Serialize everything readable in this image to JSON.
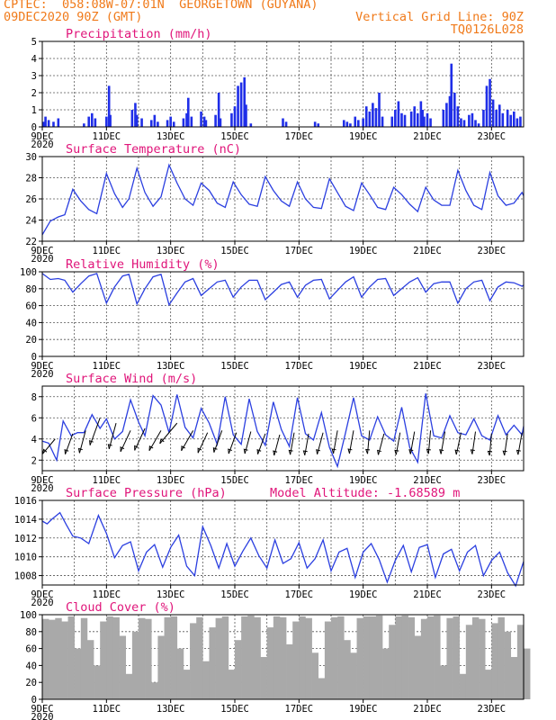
{
  "header": {
    "line1_left": "CPTEC:  058:08W-07:01N  GEORGETOWN (GUYANA)",
    "line2_left": "09DEC2020 90Z (GMT)",
    "line2_right": "Vertical Grid Line: 90Z",
    "line3_right": "TQ0126L028"
  },
  "colors": {
    "header": "#f07a1a",
    "title": "#e0157a",
    "series": "#2b3fe0",
    "precip_bars": "#1f2ee8",
    "cloud": "#a9a9a9"
  },
  "chart_data": [
    {
      "id": "precip",
      "type": "bar",
      "title": "Precipitation (mm/h)",
      "ylim": [
        0,
        5
      ],
      "yticks": [
        0,
        1,
        2,
        3,
        4,
        5
      ],
      "xticks": [
        "9DEC",
        "11DEC",
        "13DEC",
        "15DEC",
        "17DEC",
        "19DEC",
        "21DEC",
        "23DEC"
      ],
      "x_start_label": "2020",
      "x": [
        0.05,
        0.1,
        0.2,
        0.35,
        0.5,
        1.3,
        1.45,
        1.55,
        1.65,
        2.0,
        2.08,
        2.12,
        2.8,
        2.9,
        2.95,
        3.1,
        3.4,
        3.5,
        3.6,
        3.9,
        4.0,
        4.1,
        4.4,
        4.5,
        4.55,
        4.65,
        4.95,
        5.05,
        5.1,
        5.4,
        5.5,
        5.55,
        5.9,
        6.0,
        6.1,
        6.2,
        6.3,
        6.35,
        6.5,
        7.5,
        7.6,
        8.5,
        8.6,
        9.4,
        9.5,
        9.6,
        9.75,
        9.85,
        10.0,
        10.1,
        10.2,
        10.3,
        10.4,
        10.5,
        10.6,
        10.9,
        11.0,
        11.1,
        11.2,
        11.3,
        11.5,
        11.6,
        11.7,
        11.8,
        11.85,
        11.9,
        12.0,
        12.1,
        12.5,
        12.6,
        12.7,
        12.75,
        12.85,
        12.95,
        13.05,
        13.15,
        13.3,
        13.4,
        13.5,
        13.6,
        13.75,
        13.85,
        13.95,
        14.05,
        14.15,
        14.25,
        14.35,
        14.5,
        14.6,
        14.7,
        14.8,
        14.9
      ],
      "values": [
        0.3,
        0.6,
        0.4,
        0.3,
        0.5,
        0.2,
        0.6,
        0.8,
        0.5,
        0.6,
        2.4,
        0.7,
        1.0,
        1.4,
        0.7,
        0.5,
        0.4,
        0.7,
        0.3,
        0.4,
        0.6,
        0.3,
        0.5,
        0.8,
        1.7,
        0.6,
        0.9,
        0.6,
        0.4,
        0.7,
        2.0,
        0.5,
        0.8,
        1.2,
        2.4,
        2.6,
        2.9,
        1.3,
        0.2,
        0.5,
        0.3,
        0.3,
        0.2,
        0.4,
        0.3,
        0.2,
        0.6,
        0.4,
        0.5,
        1.2,
        0.9,
        1.4,
        1.1,
        2.0,
        0.6,
        0.6,
        1.0,
        1.5,
        0.8,
        0.7,
        0.9,
        1.2,
        0.8,
        1.5,
        1.0,
        0.6,
        0.8,
        0.5,
        1.0,
        1.4,
        1.8,
        3.7,
        2.0,
        1.2,
        0.5,
        0.4,
        0.7,
        0.8,
        0.4,
        0.2,
        1.0,
        2.4,
        2.8,
        1.6,
        1.0,
        1.3,
        0.8,
        1.0,
        0.7,
        0.9,
        0.5,
        0.6
      ]
    },
    {
      "id": "temp",
      "type": "line",
      "title": "Surface Temperature (nC)",
      "ylim": [
        22,
        30
      ],
      "yticks": [
        22,
        24,
        26,
        28,
        30
      ],
      "xticks": [
        "9DEC",
        "11DEC",
        "13DEC",
        "15DEC",
        "17DEC",
        "19DEC",
        "21DEC",
        "23DEC"
      ],
      "x_start_label": "2020",
      "x": [
        0.0,
        0.25,
        0.5,
        0.7,
        0.95,
        1.2,
        1.45,
        1.7,
        2.0,
        2.25,
        2.5,
        2.7,
        2.95,
        3.2,
        3.45,
        3.7,
        3.95,
        4.2,
        4.45,
        4.7,
        4.95,
        5.2,
        5.45,
        5.7,
        5.95,
        6.2,
        6.45,
        6.7,
        6.95,
        7.2,
        7.45,
        7.7,
        7.95,
        8.2,
        8.45,
        8.7,
        8.95,
        9.2,
        9.45,
        9.7,
        9.95,
        10.2,
        10.45,
        10.7,
        10.95,
        11.2,
        11.45,
        11.7,
        11.95,
        12.2,
        12.45,
        12.7,
        12.95,
        13.2,
        13.45,
        13.7,
        13.95,
        14.2,
        14.45,
        14.7,
        14.95,
        15.0
      ],
      "values": [
        22.6,
        23.9,
        24.3,
        24.5,
        26.9,
        25.8,
        25.0,
        24.6,
        28.4,
        26.5,
        25.2,
        26.0,
        28.9,
        26.6,
        25.3,
        26.2,
        29.2,
        27.5,
        26.0,
        25.4,
        27.5,
        26.8,
        25.6,
        25.2,
        27.6,
        26.4,
        25.5,
        25.3,
        28.1,
        26.8,
        25.8,
        25.3,
        27.6,
        26.0,
        25.2,
        25.1,
        27.9,
        26.6,
        25.3,
        24.9,
        27.5,
        26.4,
        25.2,
        25.0,
        27.1,
        26.4,
        25.5,
        24.8,
        27.1,
        25.9,
        25.4,
        25.4,
        28.7,
        26.8,
        25.4,
        25.0,
        28.5,
        26.3,
        25.4,
        25.6,
        26.6,
        26.3
      ]
    },
    {
      "id": "rh",
      "type": "line",
      "title": "Relative Humidity (%)",
      "ylim": [
        0,
        100
      ],
      "yticks": [
        0,
        20,
        40,
        60,
        80,
        100
      ],
      "xticks": [
        "9DEC",
        "11DEC",
        "13DEC",
        "15DEC",
        "17DEC",
        "19DEC",
        "21DEC",
        "23DEC"
      ],
      "x_start_label": "2020",
      "x": [
        0.0,
        0.25,
        0.5,
        0.7,
        0.95,
        1.2,
        1.45,
        1.7,
        2.0,
        2.25,
        2.5,
        2.7,
        2.95,
        3.2,
        3.45,
        3.7,
        3.95,
        4.2,
        4.45,
        4.7,
        4.95,
        5.2,
        5.45,
        5.7,
        5.95,
        6.2,
        6.45,
        6.7,
        6.95,
        7.2,
        7.45,
        7.7,
        7.95,
        8.2,
        8.45,
        8.7,
        8.95,
        9.2,
        9.45,
        9.7,
        9.95,
        10.2,
        10.45,
        10.7,
        10.95,
        11.2,
        11.45,
        11.7,
        11.95,
        12.2,
        12.45,
        12.7,
        12.95,
        13.2,
        13.45,
        13.7,
        13.95,
        14.2,
        14.45,
        14.7,
        14.95,
        15.0
      ],
      "values": [
        98,
        91,
        92,
        90,
        76,
        86,
        95,
        98,
        63,
        82,
        95,
        97,
        62,
        80,
        94,
        97,
        61,
        75,
        88,
        92,
        72,
        80,
        88,
        90,
        70,
        82,
        90,
        90,
        67,
        76,
        85,
        88,
        70,
        84,
        90,
        91,
        68,
        78,
        88,
        94,
        70,
        82,
        91,
        92,
        72,
        80,
        88,
        93,
        76,
        86,
        88,
        88,
        63,
        80,
        88,
        90,
        66,
        82,
        88,
        87,
        83,
        84
      ]
    },
    {
      "id": "wind",
      "type": "line",
      "title": "Surface Wind (m/s)",
      "ylim": [
        1,
        9
      ],
      "yticks": [
        2,
        4,
        6,
        8
      ],
      "xticks": [
        "9DEC",
        "11DEC",
        "13DEC",
        "15DEC",
        "17DEC",
        "19DEC",
        "21DEC",
        "23DEC"
      ],
      "x_start_label": "2020",
      "x": [
        0.0,
        0.2,
        0.45,
        0.65,
        0.9,
        1.1,
        1.3,
        1.55,
        1.8,
        2.0,
        2.25,
        2.5,
        2.75,
        3.0,
        3.2,
        3.45,
        3.7,
        3.95,
        4.2,
        4.45,
        4.7,
        4.95,
        5.2,
        5.45,
        5.7,
        5.95,
        6.2,
        6.45,
        6.7,
        6.95,
        7.2,
        7.45,
        7.7,
        7.95,
        8.2,
        8.45,
        8.7,
        8.95,
        9.2,
        9.45,
        9.7,
        9.95,
        10.2,
        10.45,
        10.7,
        10.95,
        11.2,
        11.45,
        11.7,
        11.95,
        12.2,
        12.45,
        12.7,
        12.95,
        13.2,
        13.45,
        13.7,
        13.95,
        14.2,
        14.45,
        14.7,
        14.95,
        15.0
      ],
      "values": [
        3.8,
        3.6,
        2.0,
        5.7,
        4.3,
        4.6,
        4.6,
        6.3,
        5.0,
        5.9,
        4.0,
        4.7,
        7.7,
        5.6,
        4.3,
        8.1,
        7.2,
        4.6,
        8.2,
        5.1,
        4.1,
        6.9,
        5.5,
        3.5,
        8.0,
        4.4,
        3.5,
        7.8,
        4.7,
        3.4,
        7.5,
        4.9,
        3.3,
        7.9,
        4.5,
        3.9,
        6.5,
        3.2,
        1.4,
        4.6,
        7.9,
        4.3,
        3.9,
        6.1,
        4.4,
        3.8,
        7.0,
        3.2,
        1.8,
        8.3,
        4.3,
        4.1,
        6.2,
        4.6,
        4.4,
        5.9,
        4.3,
        3.9,
        6.2,
        4.4,
        5.3,
        4.4,
        5.2
      ],
      "vector_x": [
        0.4,
        0.95,
        1.35,
        1.8,
        2.3,
        2.75,
        3.2,
        3.7,
        4.2,
        4.7,
        5.15,
        5.6,
        6.05,
        6.5,
        6.95,
        7.4,
        7.85,
        8.3,
        8.75,
        9.2,
        9.7,
        10.2,
        10.65,
        11.15,
        11.6,
        12.1,
        12.55,
        13.05,
        13.5,
        14.0,
        14.5,
        14.95
      ],
      "vector_speed": [
        4.0,
        4.5,
        4.8,
        6.0,
        5.5,
        4.8,
        5.0,
        4.8,
        5.5,
        4.8,
        4.6,
        4.8,
        4.6,
        4.7,
        4.5,
        4.4,
        4.6,
        4.5,
        4.6,
        4.8,
        4.8,
        4.8,
        4.5,
        4.6,
        4.7,
        4.8,
        4.7,
        4.6,
        4.7,
        4.5,
        4.5,
        4.6
      ],
      "vector_dir_deg": [
        230,
        250,
        255,
        250,
        255,
        245,
        245,
        240,
        230,
        240,
        245,
        250,
        250,
        255,
        250,
        255,
        260,
        260,
        255,
        260,
        260,
        265,
        255,
        260,
        260,
        265,
        260,
        258,
        262,
        265,
        262,
        260
      ]
    },
    {
      "id": "pressure",
      "type": "line",
      "title": "Surface Pressure (hPa)",
      "annotation": "Model Altitude: -1.68589 m",
      "ylim": [
        1007,
        1016
      ],
      "yticks": [
        1008,
        1010,
        1012,
        1014,
        1016
      ],
      "xticks": [
        "9DEC",
        "11DEC",
        "13DEC",
        "15DEC",
        "17DEC",
        "19DEC",
        "21DEC",
        "23DEC"
      ],
      "x_start_label": "2020",
      "x": [
        0.0,
        0.15,
        0.3,
        0.55,
        0.75,
        0.95,
        1.2,
        1.45,
        1.75,
        2.0,
        2.25,
        2.5,
        2.75,
        3.0,
        3.25,
        3.5,
        3.75,
        4.0,
        4.25,
        4.5,
        4.75,
        5.0,
        5.25,
        5.5,
        5.75,
        6.0,
        6.25,
        6.5,
        6.75,
        7.0,
        7.25,
        7.5,
        7.75,
        8.0,
        8.25,
        8.5,
        8.75,
        9.0,
        9.25,
        9.5,
        9.75,
        10.0,
        10.25,
        10.5,
        10.75,
        11.0,
        11.25,
        11.5,
        11.75,
        12.0,
        12.25,
        12.5,
        12.75,
        13.0,
        13.25,
        13.5,
        13.75,
        14.0,
        14.25,
        14.5,
        14.75,
        15.0
      ],
      "values": [
        1013.8,
        1013.5,
        1014.0,
        1014.7,
        1013.4,
        1012.2,
        1012.0,
        1011.4,
        1014.4,
        1012.5,
        1009.9,
        1011.2,
        1011.6,
        1008.5,
        1010.5,
        1011.3,
        1008.9,
        1011.0,
        1012.3,
        1009.0,
        1008.0,
        1013.2,
        1011.2,
        1008.8,
        1011.4,
        1009.0,
        1010.6,
        1012.0,
        1010.1,
        1008.8,
        1011.8,
        1009.3,
        1009.8,
        1011.5,
        1008.8,
        1009.8,
        1011.8,
        1008.5,
        1010.5,
        1010.9,
        1007.8,
        1010.5,
        1011.4,
        1009.7,
        1007.3,
        1009.6,
        1011.2,
        1008.4,
        1011.0,
        1011.3,
        1007.8,
        1010.3,
        1010.8,
        1008.5,
        1010.5,
        1011.2,
        1008.0,
        1009.6,
        1010.5,
        1008.3,
        1006.9,
        1009.5
      ]
    },
    {
      "id": "cloud",
      "type": "area",
      "title": "Cloud Cover (%)",
      "ylim": [
        0,
        100
      ],
      "yticks": [
        0,
        20,
        40,
        60,
        80,
        100
      ],
      "xticks": [
        "9DEC",
        "11DEC",
        "13DEC",
        "15DEC",
        "17DEC",
        "19DEC",
        "21DEC",
        "23DEC"
      ],
      "x_start_label": "2020",
      "x": [
        0.0,
        0.2,
        0.4,
        0.6,
        0.8,
        1.0,
        1.2,
        1.4,
        1.6,
        1.8,
        2.0,
        2.2,
        2.4,
        2.6,
        2.8,
        3.0,
        3.2,
        3.4,
        3.6,
        3.8,
        4.0,
        4.2,
        4.4,
        4.6,
        4.8,
        5.0,
        5.2,
        5.4,
        5.6,
        5.8,
        6.0,
        6.2,
        6.4,
        6.6,
        6.8,
        7.0,
        7.2,
        7.4,
        7.6,
        7.8,
        8.0,
        8.2,
        8.4,
        8.6,
        8.8,
        9.0,
        9.2,
        9.4,
        9.6,
        9.8,
        10.0,
        10.2,
        10.4,
        10.6,
        10.8,
        11.0,
        11.2,
        11.4,
        11.6,
        11.8,
        12.0,
        12.2,
        12.4,
        12.6,
        12.8,
        13.0,
        13.2,
        13.4,
        13.6,
        13.8,
        14.0,
        14.2,
        14.4,
        14.6,
        14.8,
        15.0
      ],
      "values": [
        95,
        94,
        96,
        92,
        98,
        60,
        96,
        70,
        40,
        92,
        98,
        97,
        75,
        30,
        80,
        96,
        95,
        20,
        75,
        97,
        98,
        60,
        35,
        90,
        97,
        45,
        85,
        96,
        98,
        35,
        70,
        98,
        99,
        97,
        50,
        85,
        98,
        97,
        65,
        92,
        98,
        96,
        55,
        25,
        92,
        97,
        98,
        70,
        55,
        96,
        98,
        98,
        99,
        60,
        88,
        98,
        99,
        97,
        75,
        95,
        98,
        99,
        40,
        96,
        98,
        30,
        88,
        97,
        95,
        35,
        90,
        97,
        80,
        50,
        88,
        60
      ]
    }
  ]
}
